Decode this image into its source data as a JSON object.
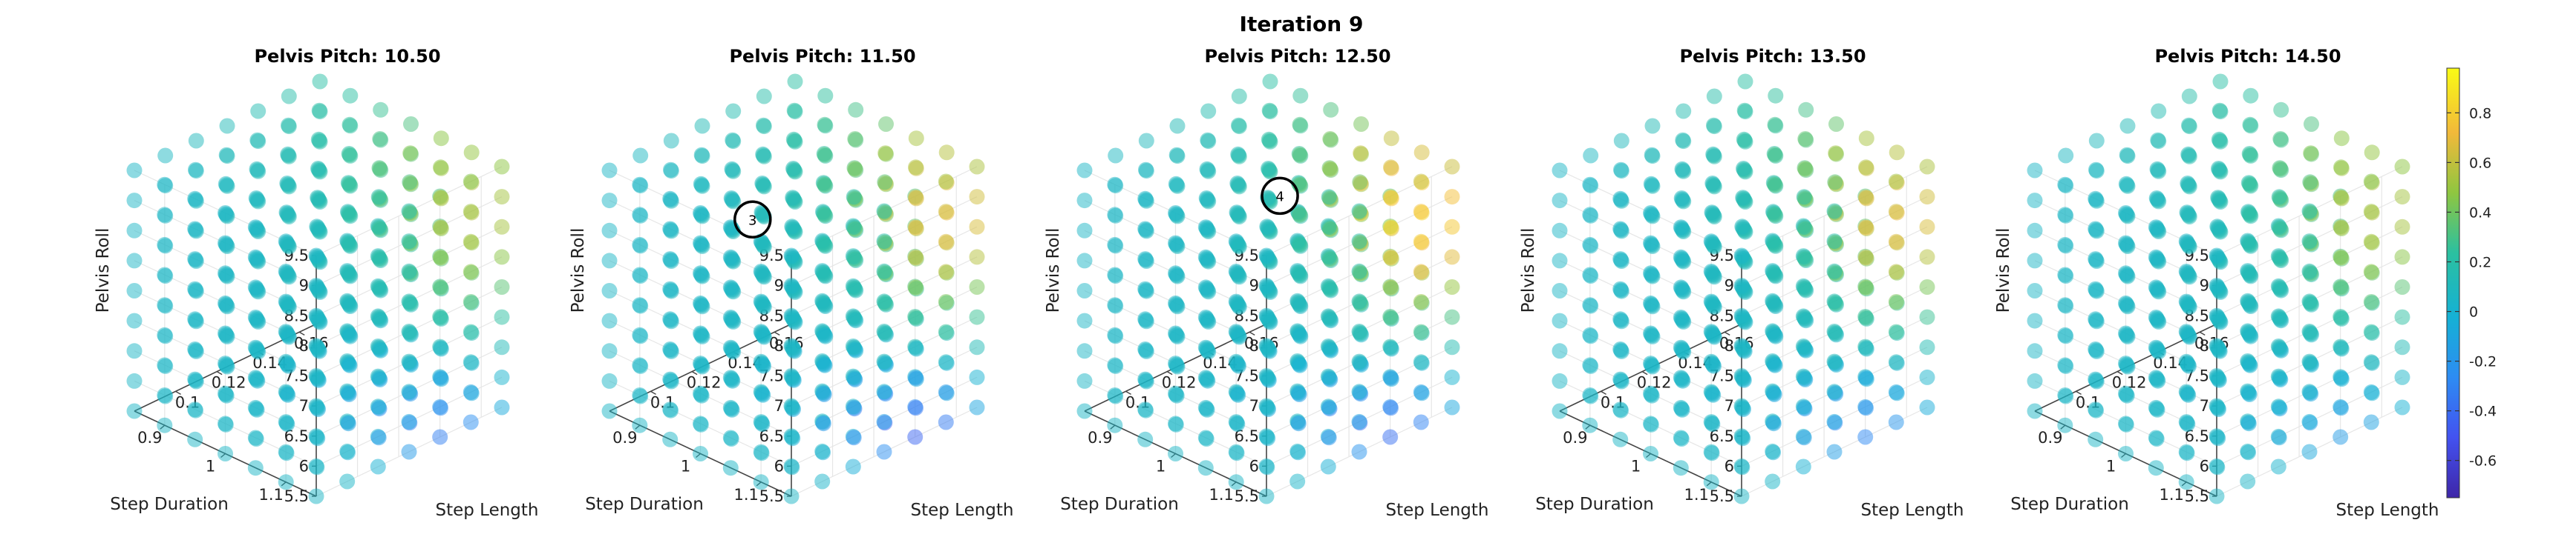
{
  "figure": {
    "title": "Iteration 9"
  },
  "chart_data": {
    "type": "scatter",
    "dimensions": 3,
    "grid": true,
    "colormap": "parula",
    "x_axis": {
      "label": "Step Length",
      "ticks": [
        0.1,
        0.12,
        0.14,
        0.16
      ],
      "range": [
        0.08,
        0.17
      ]
    },
    "y_axis": {
      "label": "Step Duration",
      "ticks": [
        0.9,
        1,
        1.1
      ],
      "range": [
        0.85,
        1.15
      ]
    },
    "z_axis": {
      "label": "Pelvis Roll",
      "ticks": [
        5.5,
        6,
        6.5,
        7,
        7.5,
        8,
        8.5,
        9,
        9.5
      ],
      "range": [
        5.5,
        9.5
      ]
    },
    "colorbar": {
      "range": [
        -0.75,
        0.98
      ],
      "ticks": [
        -0.6,
        -0.4,
        -0.2,
        0,
        0.2,
        0.4,
        0.6,
        0.8
      ]
    },
    "panels": [
      {
        "title": "Pelvis Pitch: 10.50",
        "pitch": 10.5,
        "annotations": []
      },
      {
        "title": "Pelvis Pitch: 11.50",
        "pitch": 11.5,
        "annotations": [
          {
            "label": "3",
            "x": 0.12,
            "y": 0.95,
            "z": 8.5
          }
        ]
      },
      {
        "title": "Pelvis Pitch: 12.50",
        "pitch": 12.5,
        "annotations": [
          {
            "label": "4",
            "x": 0.16,
            "y": 0.9,
            "z": 8.0
          }
        ]
      },
      {
        "title": "Pelvis Pitch: 13.50",
        "pitch": 13.5,
        "annotations": []
      },
      {
        "title": "Pelvis Pitch: 14.50",
        "pitch": 14.5,
        "annotations": []
      }
    ]
  }
}
